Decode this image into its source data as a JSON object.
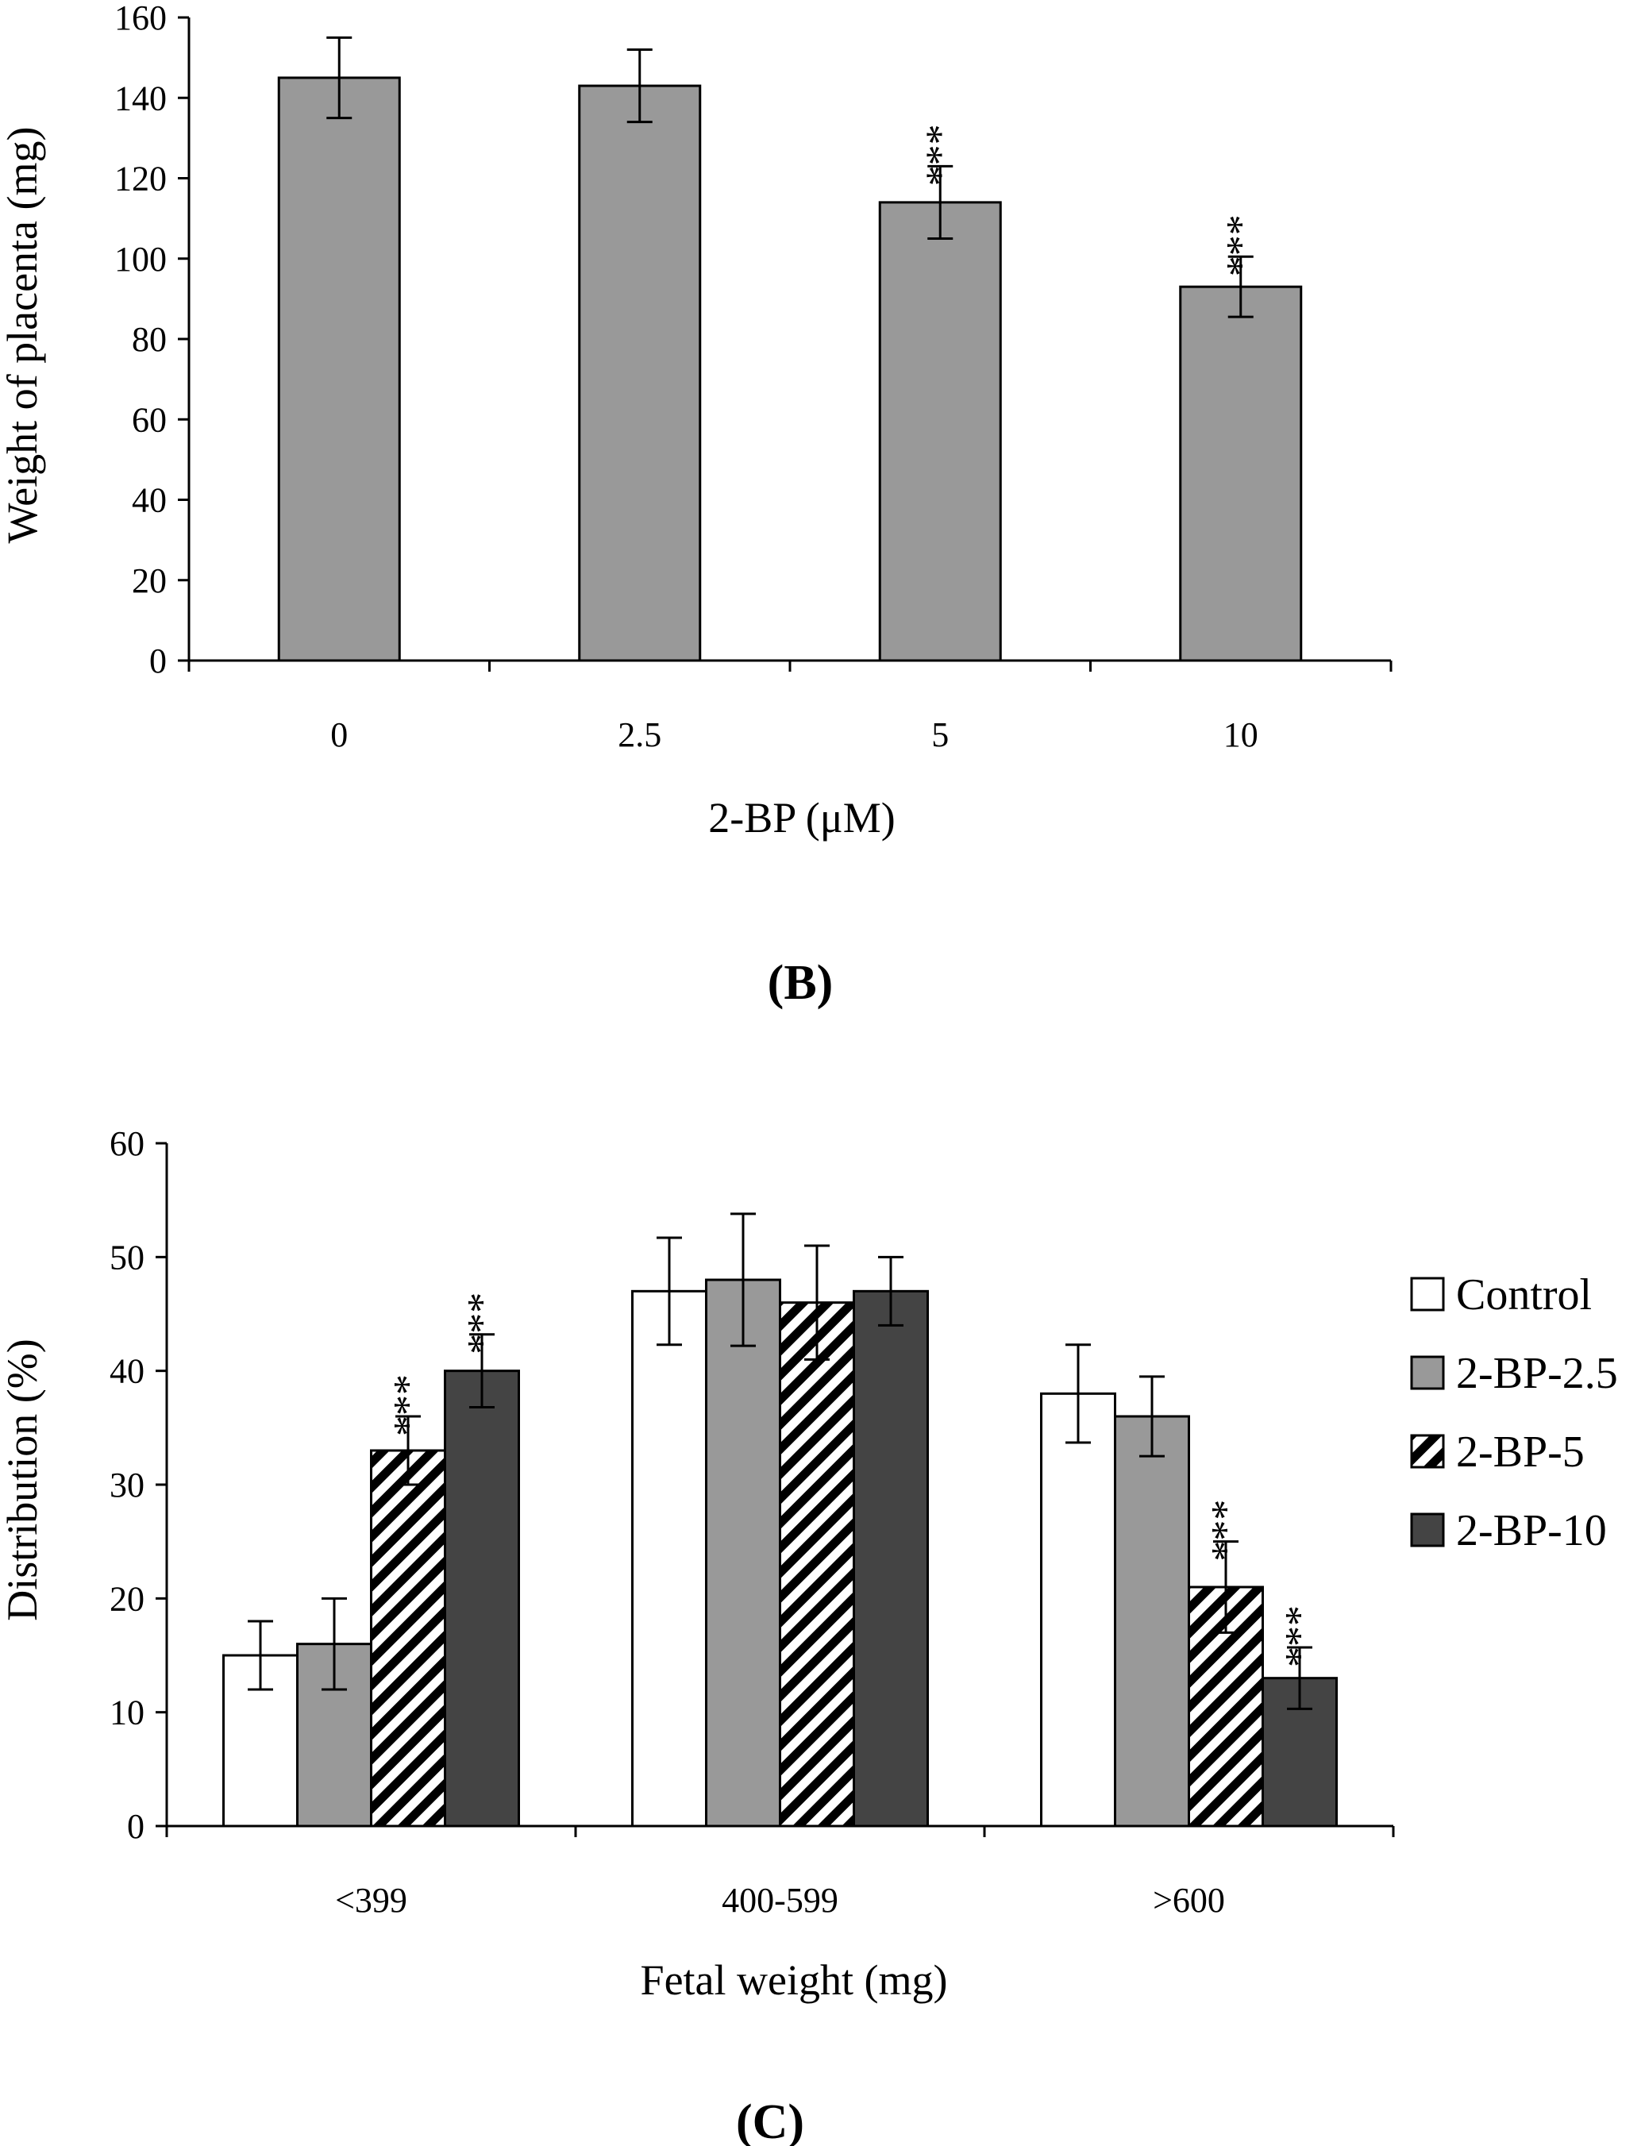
{
  "chart_data": [
    {
      "type": "bar",
      "title": "",
      "xlabel": "2-BP (μM)",
      "ylabel": "Weight of placenta (mg)",
      "ylim": [
        0,
        160
      ],
      "yticks": [
        0,
        20,
        40,
        60,
        80,
        100,
        120,
        140,
        160
      ],
      "categories": [
        "0",
        "2.5",
        "5",
        "10"
      ],
      "values": [
        145,
        143,
        114,
        93
      ],
      "errors": [
        10,
        9,
        9,
        7.5
      ],
      "significance": [
        "",
        "",
        "***",
        "***"
      ],
      "bar_color": "#999999",
      "panel_label": "(B)"
    },
    {
      "type": "bar",
      "title": "",
      "xlabel": "Fetal weight (mg)",
      "ylabel": "Distribution (%)",
      "ylim": [
        0,
        60
      ],
      "yticks": [
        0,
        10,
        20,
        30,
        40,
        50,
        60
      ],
      "categories": [
        "<399",
        "400-599",
        ">600"
      ],
      "series": [
        {
          "name": "Control",
          "values": [
            15,
            47,
            38
          ],
          "errors": [
            3,
            4.7,
            4.3
          ],
          "significance": [
            "",
            "",
            ""
          ],
          "fill": "#ffffff",
          "pattern": "none"
        },
        {
          "name": "2-BP-2.5",
          "values": [
            16,
            48,
            36
          ],
          "errors": [
            4,
            5.8,
            3.5
          ],
          "significance": [
            "",
            "",
            ""
          ],
          "fill": "#999999",
          "pattern": "none"
        },
        {
          "name": "2-BP-5",
          "values": [
            33,
            46,
            21
          ],
          "errors": [
            3,
            5,
            4
          ],
          "significance": [
            "***",
            "",
            "***"
          ],
          "fill": "#ffffff",
          "pattern": "diagonal-stripes"
        },
        {
          "name": "2-BP-10",
          "values": [
            40,
            47,
            13
          ],
          "errors": [
            3.2,
            3,
            2.7
          ],
          "significance": [
            "***",
            "",
            "***"
          ],
          "fill": "#444444",
          "pattern": "none"
        }
      ],
      "legend_position": "right",
      "panel_label": "(C)"
    }
  ]
}
